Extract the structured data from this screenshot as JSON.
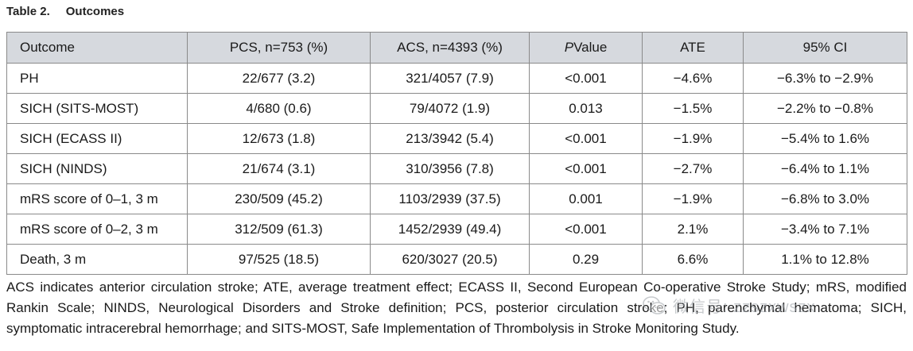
{
  "caption": {
    "number": "Table 2.",
    "title": "Outcomes"
  },
  "table": {
    "headers": {
      "outcome": "Outcome",
      "pcs": "PCS, n=753 (%)",
      "acs": "ACS, n=4393 (%)",
      "p_italic": "P",
      "p_rest": "Value",
      "ate": "ATE",
      "ci": "95% CI"
    },
    "rows": [
      {
        "outcome": "PH",
        "pcs": "22/677 (3.2)",
        "acs": "321/4057 (7.9)",
        "p": "<0.001",
        "ate": "−4.6%",
        "ci": "−6.3% to −2.9%"
      },
      {
        "outcome": "SICH (SITS-MOST)",
        "pcs": "4/680 (0.6)",
        "acs": "79/4072 (1.9)",
        "p": "0.013",
        "ate": "−1.5%",
        "ci": "−2.2% to −0.8%"
      },
      {
        "outcome": "SICH (ECASS II)",
        "pcs": "12/673 (1.8)",
        "acs": "213/3942 (5.4)",
        "p": "<0.001",
        "ate": "−1.9%",
        "ci": "−5.4% to 1.6%"
      },
      {
        "outcome": "SICH (NINDS)",
        "pcs": "21/674 (3.1)",
        "acs": "310/3956 (7.8)",
        "p": "<0.001",
        "ate": "−2.7%",
        "ci": "−6.4% to 1.1%"
      },
      {
        "outcome": "mRS score of 0–1, 3 m",
        "pcs": "230/509 (45.2)",
        "acs": "1103/2939 (37.5)",
        "p": "0.001",
        "ate": "−1.9%",
        "ci": "−6.8% to 3.0%"
      },
      {
        "outcome": "mRS score of 0–2, 3 m",
        "pcs": "312/509 (61.3)",
        "acs": "1452/2939 (49.4)",
        "p": "<0.001",
        "ate": "2.1%",
        "ci": "−3.4% to 7.1%"
      },
      {
        "outcome": "Death, 3 m",
        "pcs": "97/525 (18.5)",
        "acs": "620/3027 (20.5)",
        "p": "0.29",
        "ate": "6.6%",
        "ci": "1.1% to 12.8%"
      }
    ]
  },
  "footnote": "ACS indicates anterior circulation stroke; ATE, average treatment effect; ECASS II, Second European Co-operative Stroke Study; mRS, modified Rankin Scale; NINDS, Neurological Disorders and Stroke definition; PCS, posterior circulation stroke; PH, parenchymal hematoma; SICH, symptomatic intracerebral hemorrhage; and SITS-MOST, Safe Implementation of Thrombolysis in Stroke Monitoring Study.",
  "watermark": {
    "text": "微信号: zzszxwszx",
    "icon": "wechat-logo-icon"
  }
}
